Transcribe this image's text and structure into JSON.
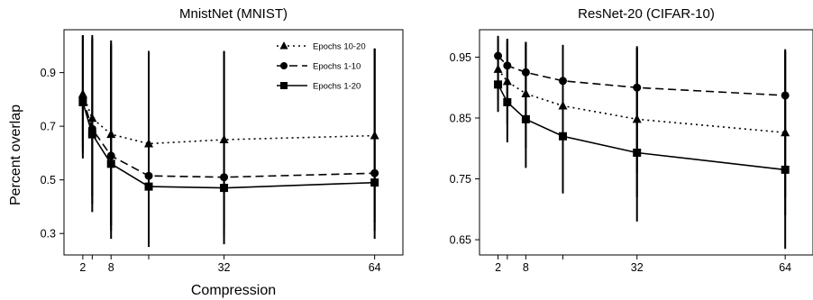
{
  "figure": {
    "ylabel": "Percent overlap",
    "xlabel": "Compression"
  },
  "chart_data": [
    {
      "type": "line",
      "title": "MnistNet (MNIST)",
      "xlabel": "Compression",
      "ylabel": "Percent overlap",
      "x": [
        2,
        4,
        8,
        16,
        32,
        64
      ],
      "xticks": [
        "2",
        "8",
        "32",
        "64"
      ],
      "xtick_values": [
        2,
        8,
        32,
        64
      ],
      "yticks": [
        "0.3",
        "0.5",
        "0.7",
        "0.9"
      ],
      "ytick_values": [
        0.3,
        0.5,
        0.7,
        0.9
      ],
      "ylim": [
        0.22,
        1.06
      ],
      "xlim": [
        -2,
        70
      ],
      "legend_position": "top-right",
      "series": [
        {
          "name": "Epochs 10-20",
          "marker": "triangle",
          "dash": "dotted",
          "values": [
            0.82,
            0.73,
            0.67,
            0.635,
            0.65,
            0.665
          ],
          "err_low": [
            0.62,
            0.44,
            0.33,
            0.3,
            0.32,
            0.34
          ],
          "err_high": [
            1.04,
            1.04,
            1.02,
            0.98,
            0.98,
            0.99
          ]
        },
        {
          "name": "Epochs 1-10",
          "marker": "circle",
          "dash": "dashed",
          "values": [
            0.805,
            0.69,
            0.59,
            0.515,
            0.51,
            0.525
          ],
          "err_low": [
            0.6,
            0.41,
            0.31,
            0.27,
            0.29,
            0.31
          ],
          "err_high": [
            1.04,
            1.03,
            1.01,
            0.98,
            0.98,
            0.99
          ]
        },
        {
          "name": "Epochs 1-20",
          "marker": "square",
          "dash": "solid",
          "values": [
            0.79,
            0.67,
            0.56,
            0.475,
            0.47,
            0.49
          ],
          "err_low": [
            0.58,
            0.38,
            0.28,
            0.25,
            0.26,
            0.28
          ],
          "err_high": [
            1.04,
            1.02,
            1.0,
            0.98,
            0.98,
            0.99
          ]
        }
      ]
    },
    {
      "type": "line",
      "title": "ResNet-20 (CIFAR-10)",
      "xlabel": "Compression",
      "ylabel": "Percent overlap",
      "x": [
        2,
        4,
        8,
        16,
        32,
        64
      ],
      "xticks": [
        "2",
        "8",
        "32",
        "64"
      ],
      "xtick_values": [
        2,
        8,
        32,
        64
      ],
      "yticks": [
        "0.65",
        "0.75",
        "0.85",
        "0.95"
      ],
      "ytick_values": [
        0.65,
        0.75,
        0.85,
        0.95
      ],
      "ylim": [
        0.625,
        0.995
      ],
      "xlim": [
        -2,
        70
      ],
      "series": [
        {
          "name": "Epochs 10-20",
          "marker": "triangle",
          "dash": "dotted",
          "values": [
            0.93,
            0.91,
            0.89,
            0.87,
            0.848,
            0.826
          ],
          "err_low": [
            0.88,
            0.84,
            0.8,
            0.76,
            0.72,
            0.69
          ],
          "err_high": [
            0.98,
            0.98,
            0.975,
            0.97,
            0.965,
            0.96
          ]
        },
        {
          "name": "Epochs 1-10",
          "marker": "circle",
          "dash": "dashed",
          "values": [
            0.952,
            0.936,
            0.925,
            0.911,
            0.9,
            0.887
          ],
          "err_low": [
            0.91,
            0.87,
            0.84,
            0.8,
            0.76,
            0.72
          ],
          "err_high": [
            0.985,
            0.98,
            0.975,
            0.97,
            0.968,
            0.963
          ]
        },
        {
          "name": "Epochs 1-20",
          "marker": "square",
          "dash": "solid",
          "values": [
            0.905,
            0.876,
            0.848,
            0.82,
            0.793,
            0.765
          ],
          "err_low": [
            0.86,
            0.81,
            0.768,
            0.726,
            0.68,
            0.635
          ],
          "err_high": [
            0.975,
            0.975,
            0.972,
            0.968,
            0.965,
            0.96
          ]
        }
      ]
    }
  ]
}
